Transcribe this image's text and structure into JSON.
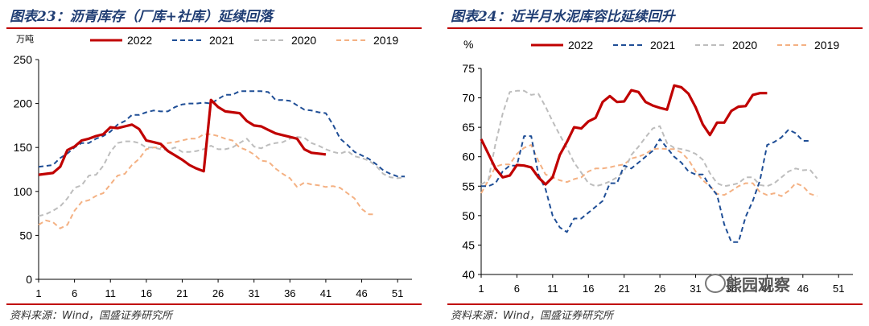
{
  "left_panel": {
    "title": "图表23：沥青库存（厂库+社库）延续回落",
    "source": "资料来源：Wind，国盛证券研究所"
  },
  "right_panel": {
    "title": "图表24：近半月水泥库容比延续回升",
    "source": "资料来源：Wind，国盛证券研究所"
  },
  "watermark": {
    "text": "熊园观察",
    "icon": "wechat-icon"
  },
  "colors": {
    "s2022": "#c00000",
    "s2021": "#1f4e96",
    "s2020": "#bdbdbd",
    "s2019": "#f4b183",
    "rule": "#c00000",
    "title": "#1f3d73"
  },
  "chart_data": [
    {
      "type": "line",
      "title": "沥青库存（厂库+社库）延续回落",
      "ylabel": "万吨",
      "xlabel": "",
      "ylim": [
        0,
        250
      ],
      "yticks": [
        0,
        50,
        100,
        150,
        200,
        250
      ],
      "xlim": [
        1,
        53
      ],
      "xticks": [
        1,
        6,
        11,
        16,
        21,
        26,
        31,
        36,
        41,
        46,
        51
      ],
      "legend": "top",
      "series": [
        {
          "name": "2022",
          "style": "solid",
          "values": [
            119,
            120,
            121,
            128,
            147,
            151,
            158,
            160,
            163,
            165,
            173,
            172,
            174,
            176,
            171,
            158,
            156,
            154,
            146,
            141,
            136,
            130,
            126,
            123,
            204,
            196,
            191,
            190,
            189,
            180,
            175,
            174,
            170,
            166,
            164,
            162,
            160,
            148,
            144,
            143,
            142
          ]
        },
        {
          "name": "2021",
          "style": "dashed",
          "values": [
            128,
            129,
            130,
            138,
            143,
            150,
            155,
            155,
            160,
            163,
            168,
            176,
            180,
            187,
            187,
            190,
            192,
            191,
            191,
            196,
            199,
            200,
            200,
            201,
            200,
            205,
            210,
            210,
            214,
            214,
            214,
            214,
            213,
            204,
            204,
            203,
            198,
            193,
            192,
            190,
            189,
            176,
            160,
            153,
            145,
            141,
            137,
            131,
            124,
            120,
            117,
            117
          ]
        },
        {
          "name": "2020",
          "style": "dashed",
          "values": [
            72,
            74,
            78,
            83,
            92,
            104,
            107,
            118,
            119,
            129,
            145,
            155,
            157,
            157,
            155,
            150,
            150,
            148,
            147,
            150,
            145,
            145,
            146,
            148,
            152,
            148,
            148,
            150,
            155,
            160,
            151,
            149,
            153,
            155,
            156,
            160,
            162,
            161,
            155,
            152,
            148,
            145,
            143,
            146,
            140,
            138,
            135,
            129,
            120,
            116,
            115,
            116
          ]
        },
        {
          "name": "2019",
          "style": "dashed",
          "values": [
            62,
            67,
            65,
            58,
            62,
            78,
            88,
            90,
            95,
            98,
            108,
            118,
            120,
            130,
            137,
            148,
            150,
            150,
            155,
            156,
            158,
            160,
            160,
            165,
            165,
            163,
            160,
            158,
            150,
            147,
            142,
            135,
            134,
            126,
            120,
            115,
            105,
            110,
            108,
            107,
            105,
            106,
            104,
            98,
            92,
            80,
            74,
            74
          ]
        }
      ]
    },
    {
      "type": "line",
      "title": "近半月水泥库容比延续回升",
      "ylabel": "%",
      "xlabel": "",
      "ylim": [
        40,
        75
      ],
      "yticks": [
        40,
        45,
        50,
        55,
        60,
        65,
        70,
        75
      ],
      "xlim": [
        1,
        53
      ],
      "xticks": [
        1,
        6,
        11,
        16,
        21,
        26,
        31,
        36,
        41,
        46,
        51
      ],
      "xtick_labels": [
        "1",
        "6",
        "11",
        "16",
        "21",
        "26",
        "31",
        "36",
        "41",
        "46",
        "51"
      ],
      "legend": "top",
      "series": [
        {
          "name": "2022",
          "style": "solid",
          "values": [
            63,
            60.5,
            58,
            56.5,
            56.8,
            58.6,
            58.5,
            58.2,
            56.5,
            55.3,
            56.5,
            60.3,
            62.5,
            65,
            64.8,
            66,
            66.6,
            69.3,
            70.3,
            69.3,
            69.4,
            71.3,
            71,
            69.3,
            68.7,
            68.3,
            68,
            72.1,
            71.8,
            70.7,
            68.4,
            65.5,
            63.7,
            65.8,
            65.8,
            67.8,
            68.5,
            68.6,
            70.5,
            70.8,
            70.8
          ]
        },
        {
          "name": "2021",
          "style": "dashed",
          "values": [
            55,
            55,
            55.5,
            57.5,
            58.5,
            58.5,
            63.5,
            63.5,
            57,
            54.5,
            50,
            48,
            47.2,
            49.5,
            49.5,
            50.5,
            51.5,
            52.5,
            55.5,
            55.5,
            58.5,
            58,
            59,
            60,
            61,
            63,
            61.5,
            60,
            59,
            57.5,
            57,
            57,
            55,
            53.5,
            48.5,
            45.5,
            45.5,
            49.8,
            52.5,
            56,
            62,
            62.5,
            63.3,
            64.6,
            64,
            62.7,
            62.7
          ]
        },
        {
          "name": "2020",
          "style": "dashed",
          "values": [
            55.3,
            56,
            62.2,
            67.3,
            71,
            71.2,
            71.2,
            70.5,
            70.7,
            68.5,
            66,
            63.7,
            61.5,
            59,
            57.3,
            55.5,
            55,
            55.3,
            55.8,
            56.5,
            57.5,
            60.3,
            61.7,
            63.3,
            64.8,
            65.2,
            62.3,
            61.5,
            61.3,
            61,
            60.5,
            59.5,
            57.2,
            55.5,
            55,
            55.2,
            55.5,
            56.5,
            56.5,
            55.2,
            55,
            55.5,
            56.5,
            57.5,
            58,
            57.7,
            57.8,
            56.3
          ]
        },
        {
          "name": "2019",
          "style": "dashed",
          "values": [
            53.8,
            56,
            58.3,
            58.7,
            58.7,
            60.5,
            61.5,
            62,
            59.3,
            57,
            56.5,
            56,
            55.7,
            56.2,
            56.5,
            57.5,
            58,
            58,
            58.2,
            58.5,
            58.7,
            59.7,
            60,
            60.5,
            61.3,
            61.4,
            61.3,
            61.3,
            60.7,
            59.5,
            57.5,
            56,
            55,
            53.7,
            53.5,
            54.2,
            55,
            55.5,
            55.5,
            54,
            53.5,
            53.8,
            53.3,
            54.2,
            55.5,
            55,
            53.7,
            53.3
          ]
        }
      ]
    }
  ]
}
